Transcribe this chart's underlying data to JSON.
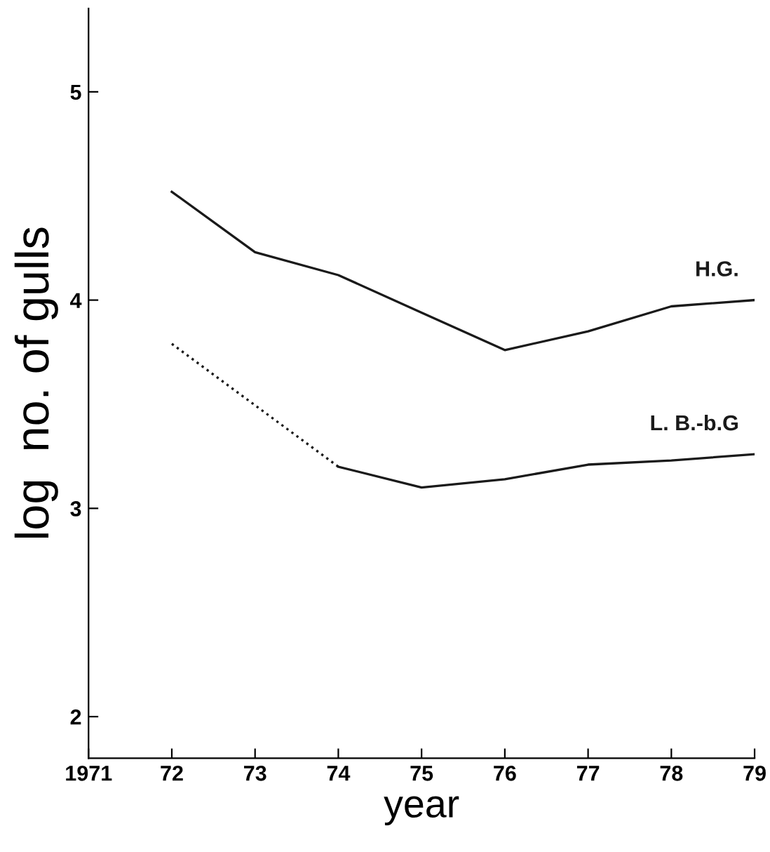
{
  "chart_data": {
    "type": "line",
    "xlabel": "year",
    "ylabel": "log  no. of gulls",
    "xlim": [
      1971,
      1979
    ],
    "ylim": [
      1.8,
      5.4
    ],
    "xticks": [
      1971,
      {
        "value": 1972,
        "label": "72"
      },
      {
        "value": 1973,
        "label": "73"
      },
      {
        "value": 1974,
        "label": "74"
      },
      {
        "value": 1975,
        "label": "75"
      },
      {
        "value": 1976,
        "label": "76"
      },
      {
        "value": 1977,
        "label": "77"
      },
      {
        "value": 1978,
        "label": "78"
      },
      {
        "value": 1979,
        "label": "79"
      }
    ],
    "yticks": [
      2,
      3,
      4,
      5
    ],
    "grid": false,
    "legend": false,
    "marker": "none",
    "series": [
      {
        "name": "H.G.",
        "color": "#1a1a1a",
        "line_style": "solid",
        "x": [
          1972,
          1973,
          1974,
          1975,
          1976,
          1977,
          1978,
          1979
        ],
        "values": [
          4.52,
          4.23,
          4.12,
          3.94,
          3.76,
          3.85,
          3.97,
          4.0
        ]
      },
      {
        "color": "#1a1a1a",
        "line_style": "dotted",
        "x": [
          1972,
          1974
        ],
        "values": [
          3.79,
          3.2
        ]
      },
      {
        "name": "L. B.-b.G",
        "color": "#1a1a1a",
        "line_style": "solid",
        "x": [
          1974,
          1975,
          1976,
          1977,
          1978,
          1979
        ],
        "values": [
          3.2,
          3.1,
          3.14,
          3.21,
          3.23,
          3.26
        ]
      }
    ]
  }
}
